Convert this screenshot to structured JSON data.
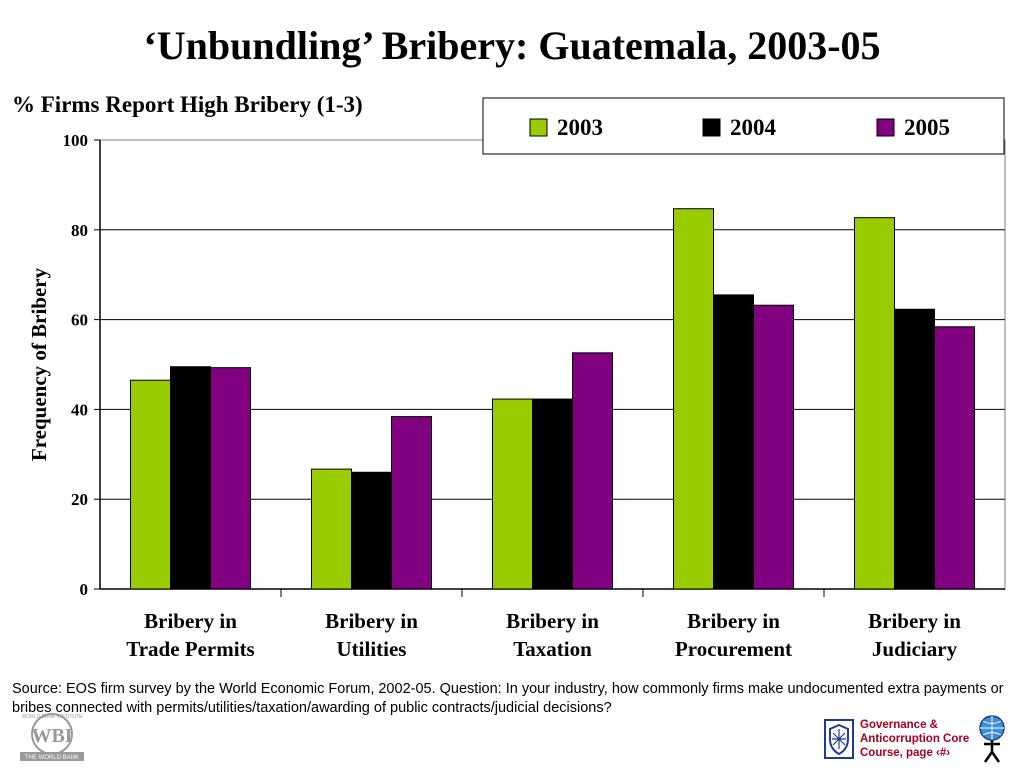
{
  "title": "‘Unbundling’ Bribery: Guatemala, 2003-05",
  "subtitle": "% Firms Report High Bribery (1-3)",
  "source_text": "Source:  EOS firm survey by the World Economic Forum, 2002-05.  Question: In your industry, how commonly firms make undocumented extra payments or bribes connected with permits/utilities/taxation/awarding of public contracts/judicial decisions?",
  "footer": {
    "course_lines": [
      "Governance &",
      "Anticorruption Core",
      "Course, page ‹#›"
    ],
    "logo_text": "WBI",
    "logo_ring_text": "WORLD BANK INSTITUTE",
    "logo_sub_text": "THE WORLD BANK"
  },
  "chart_data": {
    "type": "bar",
    "categories": [
      [
        "Bribery in",
        "Trade Permits"
      ],
      [
        "Bribery in",
        "Utilities"
      ],
      [
        "Bribery in",
        "Taxation"
      ],
      [
        "Bribery in",
        "Procurement"
      ],
      [
        "Bribery in",
        "Judiciary"
      ]
    ],
    "series": [
      {
        "name": "2003",
        "color": "#99cc00",
        "values": [
          46.5,
          26.7,
          42.3,
          84.7,
          82.7
        ]
      },
      {
        "name": "2004",
        "color": "#000000",
        "values": [
          49.5,
          26.0,
          42.3,
          65.5,
          62.3
        ]
      },
      {
        "name": "2005",
        "color": "#800080",
        "values": [
          49.3,
          38.4,
          52.6,
          63.2,
          58.4
        ]
      }
    ],
    "ylabel": "Frequency of Bribery",
    "xlabel": "",
    "ylim": [
      0,
      100
    ],
    "yticks": [
      0,
      20,
      40,
      60,
      80,
      100
    ],
    "grid": true,
    "legend_position": "top-right"
  }
}
